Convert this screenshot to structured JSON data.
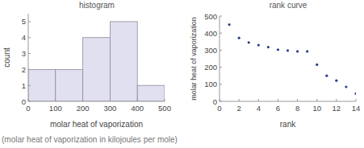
{
  "chart_data": [
    {
      "type": "histogram",
      "title": "histogram",
      "xlabel": "molar heat of vaporization",
      "ylabel": "count",
      "bins": [
        0,
        100,
        200,
        300,
        400,
        500
      ],
      "values": [
        2,
        2,
        4,
        5,
        1
      ],
      "color": "#e0e0f0",
      "xlim": [
        0,
        500
      ],
      "xticks": [
        0,
        100,
        200,
        300,
        400,
        500
      ],
      "ylim": [
        0,
        5.5
      ],
      "yticks": [
        0,
        1,
        2,
        3,
        4,
        5
      ],
      "grid": false
    },
    {
      "type": "scatter",
      "title": "rank curve",
      "xlabel": "rank",
      "ylabel": "molar heat of vaporization",
      "x": [
        1,
        2,
        3,
        4,
        5,
        6,
        7,
        8,
        9,
        10,
        11,
        12,
        13,
        14
      ],
      "values": [
        450,
        372,
        345,
        330,
        318,
        303,
        298,
        293,
        293,
        215,
        150,
        122,
        85,
        45
      ],
      "color": "#2b3f8c",
      "marker": "circle",
      "xlim": [
        0,
        14
      ],
      "xticks": [
        0,
        2,
        4,
        6,
        8,
        10,
        12,
        14
      ],
      "ylim": [
        0,
        500
      ],
      "yticks": [
        0,
        100,
        200,
        300,
        400,
        500
      ],
      "grid": false
    }
  ],
  "caption": "(molar heat of vaporization in kilojoules per mole)"
}
